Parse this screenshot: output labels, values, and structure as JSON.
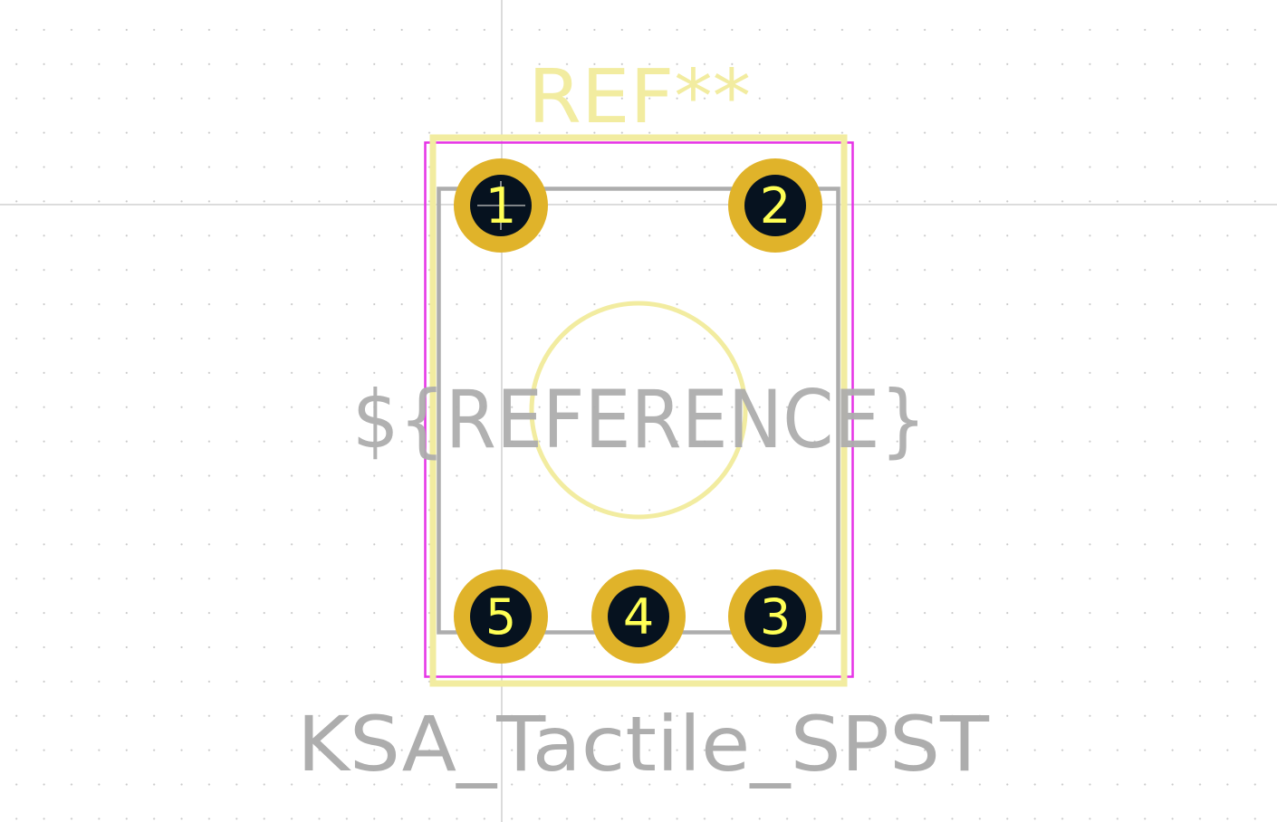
{
  "footprint": {
    "reference_designator": "REF**",
    "reference_field": "${REFERENCE}",
    "value": "KSA_Tactile_SPST"
  },
  "pads": [
    {
      "number": "1"
    },
    {
      "number": "2"
    },
    {
      "number": "3"
    },
    {
      "number": "4"
    },
    {
      "number": "5"
    }
  ],
  "colors": {
    "background": "#ffffff",
    "grid_dot": "#c9c9c9",
    "crosshair": "#c8c8c8",
    "silkscreen": "#f2eca0",
    "fab_outline": "#adadad",
    "courtyard": "#e632e6",
    "pad_copper": "#e0b32a",
    "pad_hole": "#06121f",
    "pad_number": "#ffff55",
    "fab_text": "#adadad"
  }
}
